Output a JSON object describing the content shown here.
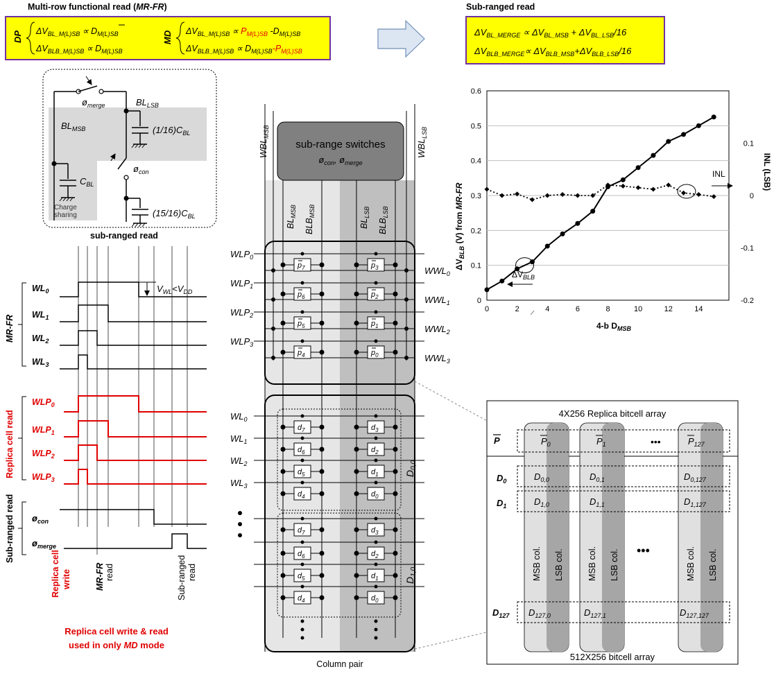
{
  "mrfr": {
    "title_prefix": "Multi-row functional read (",
    "title_em": "MR-FR",
    "title_suffix": ")",
    "dp_label": "DP",
    "md_label": "MD",
    "dp_line1": "ΔV",
    "dp_line1_sub": "BL_M(L)SB",
    "dp_line1_rel": "∝ D",
    "dp_line1_rel_sub": "M(L)SB",
    "dp_line2": "ΔV",
    "dp_line2_sub": "BLB_M(L)SB",
    "dp_line2_rel": "∝ D",
    "dp_line2_rel_sub": "M(L)SB",
    "md_line1": "ΔV",
    "md_line1_sub": "BL_M(L)SB",
    "md_line1_rel": "∝",
    "md_line1_p": "P",
    "md_line1_p_sub": "M(L)SB",
    "md_line1_d": "-D",
    "md_line1_d_sub": "M(L)SB",
    "md_line2": "ΔV",
    "md_line2_sub": "BLB_M(L)SB",
    "md_line2_rel": "∝ D",
    "md_line2_rel_sub": "M(L)SB",
    "md_line2_p": "-P",
    "md_line2_p_sub": "M(L)SB"
  },
  "subranged": {
    "title": "Sub-ranged read",
    "eq1": "ΔV",
    "eq1_sub": "BL_MERGE",
    "eq1_rel": "∝ ΔV",
    "eq1_sub2": "BL_MSB",
    "eq1_plus": "+ ΔV",
    "eq1_sub3": "BL_LSB",
    "eq1_div": "/16",
    "eq2": "ΔV",
    "eq2_sub": "BLB_MERGE",
    "eq2_rel": "∝ ΔV",
    "eq2_sub2": "BLB_MSB",
    "eq2_plus": "+ΔV",
    "eq2_sub3": "BLB_LSB",
    "eq2_div": "/16"
  },
  "circuit": {
    "phi_merge": "ø",
    "phi_merge_sub": "merge",
    "bl_lsb": "BL",
    "bl_lsb_sub": "LSB",
    "bl_msb": "BL",
    "bl_msb_sub": "MSB",
    "c_lsb": "(1/16)C",
    "c_lsb_sub": "BL",
    "phi_con": "ø",
    "phi_con_sub": "con",
    "c_bl": "C",
    "c_bl_sub": "BL",
    "c_rest": "(15/16)C",
    "c_rest_sub": "BL",
    "charge_sharing_1": "Charge",
    "charge_sharing_2": "sharing",
    "caption": "sub-ranged read"
  },
  "timing": {
    "mrfr_label": "MR-FR",
    "replica_label": "Replica cell read",
    "subranged_label": "Sub-ranged read",
    "wl": [
      "WL",
      "WL",
      "WL",
      "WL"
    ],
    "wl_sub": [
      "0",
      "1",
      "2",
      "3"
    ],
    "wlp": [
      "WLP",
      "WLP",
      "WLP",
      "WLP"
    ],
    "wlp_sub": [
      "0",
      "1",
      "2",
      "3"
    ],
    "phi_con": "ø",
    "phi_con_sub": "con",
    "phi_merge": "ø",
    "phi_merge_sub": "merge",
    "vwl": "V",
    "vwl_sub": "WL",
    "vwl_rel": "<V",
    "vwl_sub2": "DD",
    "phase_replica_1": "Replica cell",
    "phase_replica_2": "write",
    "phase_mrfr_1": "MR-FR",
    "phase_mrfr_2": "read",
    "phase_sub_1": "Sub-ranged",
    "phase_sub_2": "read",
    "note_1": "Replica cell write & read",
    "note_2_a": "used in only ",
    "note_2_b": "MD",
    "note_2_c": " mode"
  },
  "array": {
    "wbl_msb": "WBL",
    "wbl_msb_sub": "MSB",
    "wbl_lsb": "WBL",
    "wbl_lsb_sub": "LSB",
    "switch_title": "sub-range switches",
    "switch_sub": "ø",
    "switch_sub_a": "con",
    "switch_sub_b": ", ø",
    "switch_sub_c": "merge",
    "bl_labels": [
      "BL",
      "BLB",
      "BL",
      "BLB"
    ],
    "bl_subs": [
      "MSB",
      "MSB",
      "LSB",
      "LSB"
    ],
    "wlp": [
      "WLP",
      "WLP",
      "WLP",
      "WLP"
    ],
    "wlp_sub": [
      "0",
      "1",
      "2",
      "3"
    ],
    "wwl": [
      "WWL",
      "WWL",
      "WWL",
      "WWL"
    ],
    "wwl_sub": [
      "0",
      "1",
      "2",
      "3"
    ],
    "wl": [
      "WL",
      "WL",
      "WL",
      "WL"
    ],
    "wl_sub": [
      "0",
      "1",
      "2",
      "3"
    ],
    "replica_left": [
      "p",
      "p",
      "p",
      "p"
    ],
    "replica_left_sub": [
      "7",
      "6",
      "5",
      "4"
    ],
    "replica_right": [
      "p",
      "p",
      "p",
      "p"
    ],
    "replica_right_sub": [
      "3",
      "2",
      "1",
      "0"
    ],
    "cell_left": [
      "d",
      "d",
      "d",
      "d"
    ],
    "cell_left_sub": [
      "7",
      "6",
      "5",
      "4"
    ],
    "cell_right": [
      "d",
      "d",
      "d",
      "d"
    ],
    "cell_right_sub": [
      "3",
      "2",
      "1",
      "0"
    ],
    "group0": "D",
    "group0_sub": "0,0",
    "group1": "D",
    "group1_sub": "1,0",
    "caption": "Column pair"
  },
  "chart_data": {
    "type": "line",
    "x": [
      0,
      1,
      2,
      3,
      4,
      5,
      6,
      7,
      8,
      9,
      10,
      11,
      12,
      13,
      14,
      15
    ],
    "series": [
      {
        "name": "ΔV_BLB",
        "axis": "left",
        "values": [
          0.03,
          0.055,
          0.09,
          0.11,
          0.155,
          0.19,
          0.22,
          0.255,
          0.325,
          0.345,
          0.38,
          0.415,
          0.455,
          0.475,
          0.5,
          0.525
        ]
      },
      {
        "name": "INL",
        "axis": "right",
        "values": [
          0.012,
          0.0,
          0.003,
          -0.008,
          0.0,
          0.002,
          0.0,
          0.0,
          0.02,
          0.018,
          0.015,
          0.012,
          0.02,
          0.005,
          0.002,
          -0.002
        ]
      }
    ],
    "xlabel": "4-b D",
    "xlabel_sub": "MSB",
    "ylabel": "ΔV",
    "ylabel_sub": "BLB",
    "ylabel_rest": " (V) from ",
    "ylabel_em": "MR-FR",
    "ylabel_right": "INL (LSB)",
    "xticks": [
      "0",
      "2",
      "4",
      "6",
      "8",
      "10",
      "12",
      "14"
    ],
    "yticks_left": [
      "0",
      "0.1",
      "0.2",
      "0.3",
      "0.4",
      "0.5",
      "0.6"
    ],
    "yticks_right": [
      "-0.2",
      "-0.1",
      "0",
      "0.1"
    ],
    "xlim": [
      0,
      16
    ],
    "ylim_left": [
      0,
      0.6
    ],
    "ylim_right": [
      -0.2,
      0.2
    ],
    "annot_dv": "ΔV",
    "annot_dv_sub": "BLB",
    "annot_inl": "INL",
    "grid": "horizontal"
  },
  "bitcell": {
    "replica_title": "4X256 Replica bitcell array",
    "p_row": "P",
    "p_cols": [
      "P",
      "P",
      "P"
    ],
    "p_cols_sub": [
      "0",
      "1",
      "127"
    ],
    "rows": [
      "D",
      "D",
      "D"
    ],
    "rows_sub": [
      "0",
      "1",
      "127"
    ],
    "r0": [
      "D",
      "D",
      "D"
    ],
    "r0_sub": [
      "0,0",
      "0,1",
      "0,127"
    ],
    "r1": [
      "D",
      "D",
      "D"
    ],
    "r1_sub": [
      "1,0",
      "1,1",
      "1,127"
    ],
    "r127": [
      "D",
      "D",
      "D"
    ],
    "r127_sub": [
      "127,0",
      "127,1",
      "127,127"
    ],
    "msb_col": "MSB col.",
    "lsb_col": "LSB col.",
    "ellipsis": "•••",
    "caption": "512X256 bitcell array"
  }
}
